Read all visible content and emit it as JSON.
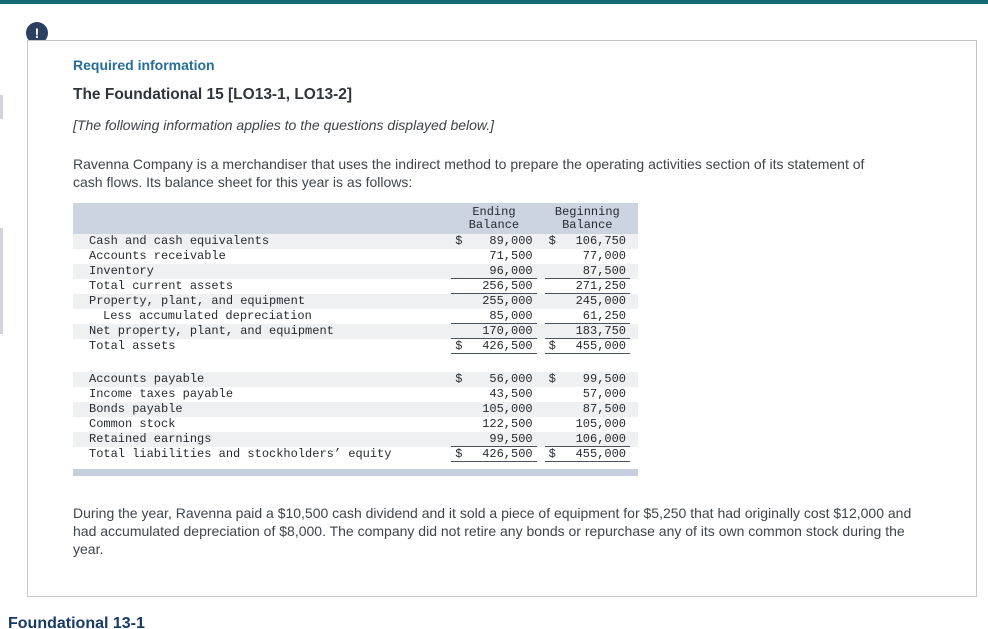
{
  "alert_badge": {
    "glyph": "!"
  },
  "footer": {
    "heading": "Foundational 13-1"
  },
  "card": {
    "required_info_label": "Required information",
    "title": "The Foundational 15 [LO13-1, LO13-2]",
    "subtitle": "[The following information applies to the questions displayed below.]",
    "intro": "Ravenna Company is a merchandiser that uses the indirect method to prepare the operating activities section of its statement of cash flows. Its balance sheet for this year is as follows:",
    "outro": "During the year, Ravenna paid a $10,500 cash dividend and it sold a piece of equipment for $5,250 that had originally cost $12,000 and had accumulated depreciation of $8,000. The company did not retire any bonds or repurchase any of its own common stock during the year."
  },
  "balance_sheet": {
    "col_headers": [
      "Ending\nBalance",
      "Beginning\nBalance"
    ],
    "rows": [
      {
        "label": "Cash and cash equivalents",
        "end_cur": "$",
        "end": "89,000",
        "beg_cur": "$",
        "beg": "106,750"
      },
      {
        "label": "Accounts receivable",
        "end": "71,500",
        "beg": "77,000"
      },
      {
        "label": "Inventory",
        "end": "96,000",
        "beg": "87,500"
      },
      {
        "label": "Total current assets",
        "end": "256,500",
        "beg": "271,250"
      },
      {
        "label": "Property, plant, and equipment",
        "end": "255,000",
        "beg": "245,000"
      },
      {
        "label": "Less accumulated depreciation",
        "end": "85,000",
        "beg": "61,250"
      },
      {
        "label": "Net property, plant, and equipment",
        "end": "170,000",
        "beg": "183,750"
      },
      {
        "label": "Total assets",
        "end_cur": "$",
        "end": "426,500",
        "beg_cur": "$",
        "beg": "455,000"
      },
      {
        "label": "Accounts payable",
        "end_cur": "$",
        "end": "56,000",
        "beg_cur": "$",
        "beg": "99,500"
      },
      {
        "label": "Income taxes payable",
        "end": "43,500",
        "beg": "57,000"
      },
      {
        "label": "Bonds payable",
        "end": "105,000",
        "beg": "87,500"
      },
      {
        "label": "Common stock",
        "end": "122,500",
        "beg": "105,000"
      },
      {
        "label": "Retained earnings",
        "end": "99,500",
        "beg": "106,000"
      },
      {
        "label": "Total liabilities and stockholders’ equity",
        "end_cur": "$",
        "end": "426,500",
        "beg_cur": "$",
        "beg": "455,000"
      }
    ]
  },
  "colors": {
    "top_bar": "#166a76",
    "alert_badge": "#2b3f63",
    "required_info_heading": "#266e99",
    "table_header_bg": "#cdd4e1",
    "table_row_shade": "#eef0f2",
    "table_bottom_bar": "#c5cedc",
    "footer_heading": "#173a66"
  }
}
